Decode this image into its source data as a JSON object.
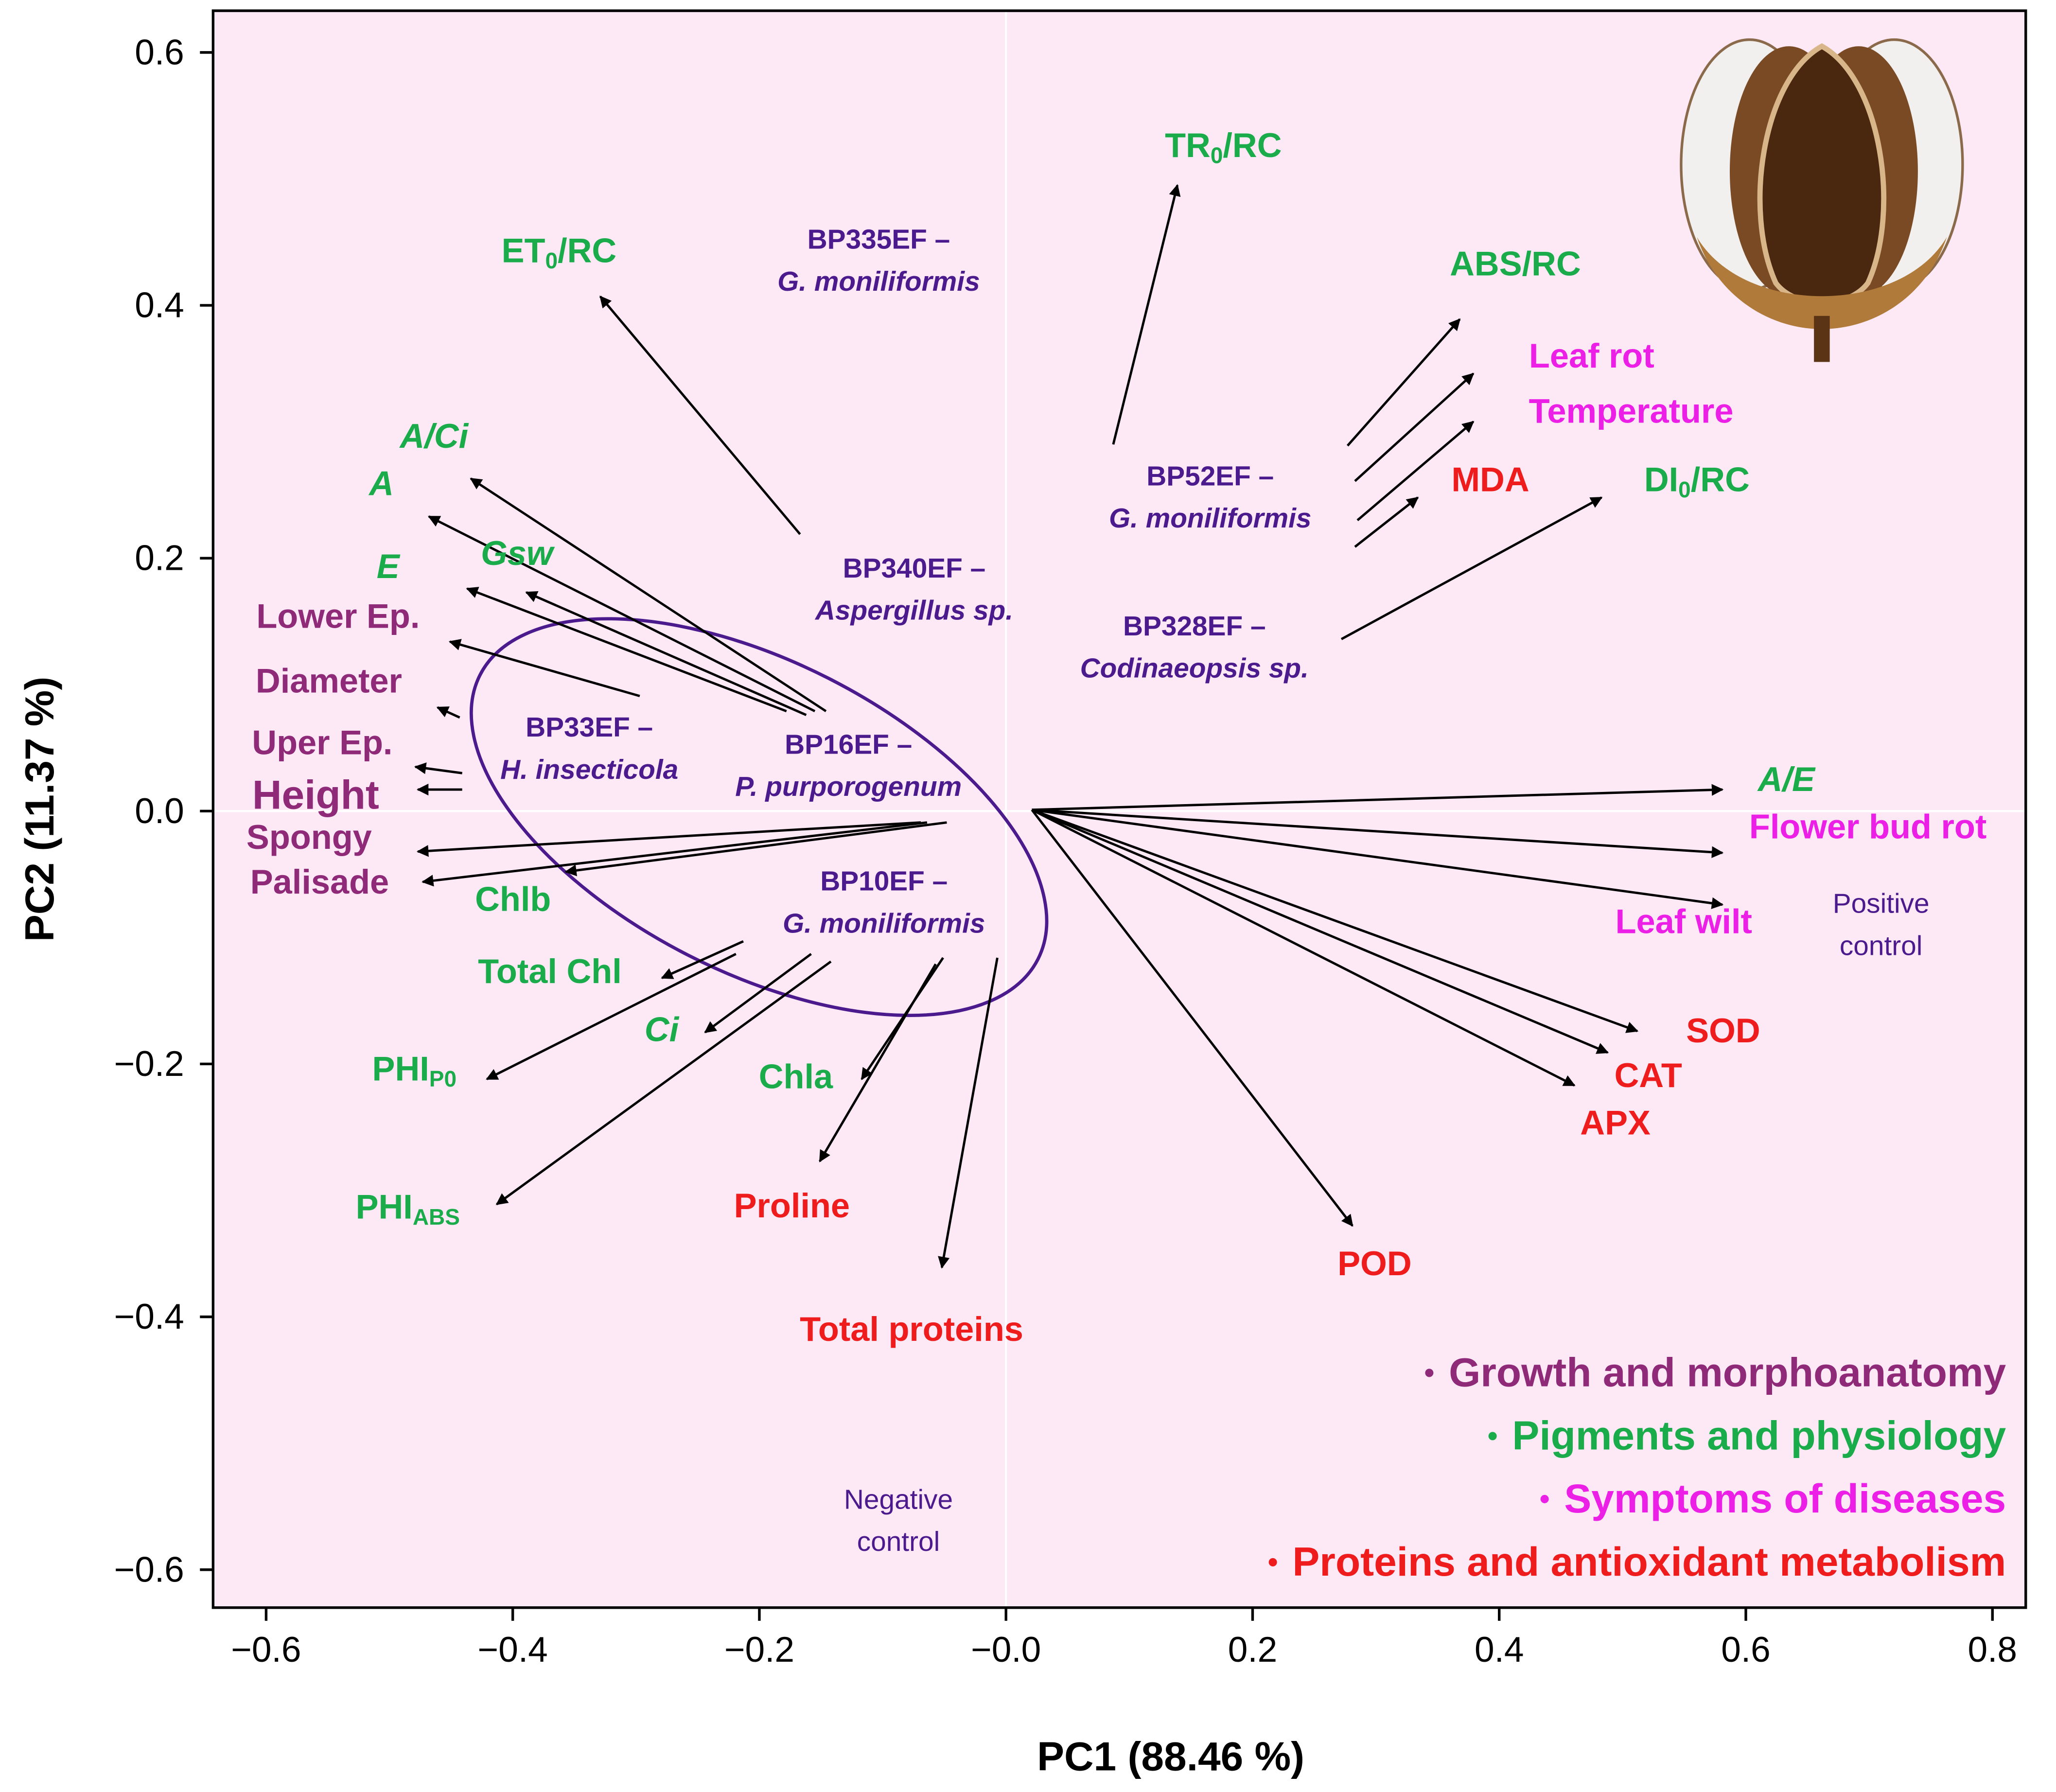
{
  "chart_data": {
    "type": "biplot",
    "x_label": "PC1 (88.46 %)",
    "y_label": "PC2 (11.37 %)",
    "xlim": [
      -0.643,
      0.827
    ],
    "ylim": [
      -0.63,
      0.633
    ],
    "xticks": [
      {
        "value": -0.6,
        "label": "−0.6"
      },
      {
        "value": -0.4,
        "label": "−0.4"
      },
      {
        "value": -0.2,
        "label": "−0.2"
      },
      {
        "value": 0,
        "label": "−0.0"
      },
      0.2,
      0.4,
      0.6,
      0.8
    ],
    "yticks": [
      {
        "value": -0.6,
        "label": "−0.6"
      },
      {
        "value": -0.4,
        "label": "−0.4"
      },
      {
        "value": -0.2,
        "label": "−0.2"
      },
      {
        "value": 0,
        "label": "0.0"
      },
      0.2,
      0.4,
      0.6
    ],
    "background": "#fde9f5",
    "arrow_color": "#000000",
    "groups": [
      {
        "name": "Growth and morphoanatomy",
        "color": "#8e2a78"
      },
      {
        "name": "Pigments and physiology",
        "color": "#1aab4b"
      },
      {
        "name": "Symptoms of diseases",
        "color": "#ec1fe6"
      },
      {
        "name": "Proteins and antioxidant metabolism",
        "color": "#ee1c1c"
      }
    ],
    "loadings": [
      {
        "label": "ET",
        "sub": "0",
        "suffix": "/RC",
        "group": 1,
        "x0": -0.167,
        "y0": 0.219,
        "x": -0.329,
        "y": 0.407
      },
      {
        "label": "TR",
        "sub": "0",
        "suffix": "/RC",
        "group": 1,
        "x0": 0.087,
        "y0": 0.29,
        "x": 0.139,
        "y": 0.495
      },
      {
        "label": "ABS/RC",
        "group": 1,
        "x0": 0.277,
        "y0": 0.289,
        "x": 0.368,
        "y": 0.389
      },
      {
        "label": "Leaf rot",
        "group": 2,
        "x0": 0.283,
        "y0": 0.261,
        "x": 0.379,
        "y": 0.346
      },
      {
        "label": "Temperature",
        "group": 2,
        "x0": 0.285,
        "y0": 0.23,
        "x": 0.379,
        "y": 0.308
      },
      {
        "label": "MDA",
        "group": 3,
        "x0": 0.283,
        "y0": 0.209,
        "x": 0.334,
        "y": 0.248
      },
      {
        "label": "DI",
        "sub": "0",
        "suffix": "/RC",
        "group": 1,
        "x0": 0.272,
        "y0": 0.136,
        "x": 0.483,
        "y": 0.248
      },
      {
        "label": "A/Ci",
        "italic": true,
        "group": 1,
        "x0": -0.146,
        "y0": 0.079,
        "x": -0.434,
        "y": 0.263
      },
      {
        "label": "A",
        "italic": true,
        "group": 1,
        "x0": -0.155,
        "y0": 0.079,
        "x": -0.468,
        "y": 0.233
      },
      {
        "label": "Gsw",
        "italic": true,
        "group": 1,
        "x0": -0.162,
        "y0": 0.076,
        "x": -0.389,
        "y": 0.173
      },
      {
        "label": "E",
        "italic": true,
        "group": 1,
        "x0": -0.178,
        "y0": 0.079,
        "x": -0.437,
        "y": 0.176
      },
      {
        "label": "Lower Ep.",
        "group": 0,
        "x0": -0.297,
        "y0": 0.091,
        "x": -0.451,
        "y": 0.134
      },
      {
        "label": "Diameter",
        "group": 0,
        "x0": -0.443,
        "y0": 0.074,
        "x": -0.461,
        "y": 0.082
      },
      {
        "label": "Uper Ep.",
        "group": 0,
        "x0": -0.441,
        "y0": 0.03,
        "x": -0.479,
        "y": 0.035
      },
      {
        "label": "Height",
        "group": 0,
        "x0": -0.441,
        "y0": 0.017,
        "x": -0.477,
        "y": 0.017
      },
      {
        "label": "Spongy",
        "group": 0,
        "x0": -0.069,
        "y0": -0.009,
        "x": -0.477,
        "y": -0.032
      },
      {
        "label": "Palisade",
        "group": 0,
        "x0": -0.064,
        "y0": -0.009,
        "x": -0.473,
        "y": -0.056
      },
      {
        "label": "Chlb",
        "group": 1,
        "x0": -0.048,
        "y0": -0.009,
        "x": -0.357,
        "y": -0.048
      },
      {
        "label": "Total Chl",
        "group": 1,
        "x0": -0.213,
        "y0": -0.103,
        "x": -0.279,
        "y": -0.132
      },
      {
        "label": "Ci",
        "italic": true,
        "group": 1,
        "x0": -0.158,
        "y0": -0.113,
        "x": -0.244,
        "y": -0.175
      },
      {
        "label": "PHI",
        "sub": "P0",
        "group": 1,
        "x0": -0.219,
        "y0": -0.113,
        "x": -0.421,
        "y": -0.212
      },
      {
        "label": "PHI",
        "sub": "ABS",
        "group": 1,
        "x0": -0.142,
        "y0": -0.119,
        "x": -0.413,
        "y": -0.311
      },
      {
        "label": "Chla",
        "group": 1,
        "x0": -0.051,
        "y0": -0.116,
        "x": -0.117,
        "y": -0.212
      },
      {
        "label": "Proline",
        "group": 3,
        "x0": -0.057,
        "y0": -0.121,
        "x": -0.151,
        "y": -0.277
      },
      {
        "label": "Total proteins",
        "group": 3,
        "x0": -0.007,
        "y0": -0.116,
        "x": -0.052,
        "y": -0.361
      },
      {
        "label": "POD",
        "group": 3,
        "x0": 0.021,
        "y0": 0.001,
        "x": 0.281,
        "y": -0.328
      },
      {
        "label": "APX",
        "group": 3,
        "x0": 0.021,
        "y0": 0.001,
        "x": 0.461,
        "y": -0.217
      },
      {
        "label": "CAT",
        "group": 3,
        "x0": 0.021,
        "y0": 0.001,
        "x": 0.488,
        "y": -0.191
      },
      {
        "label": "SOD",
        "group": 3,
        "x0": 0.021,
        "y0": 0.001,
        "x": 0.512,
        "y": -0.174
      },
      {
        "label": "Leaf wilt",
        "group": 2,
        "x0": 0.021,
        "y0": 0.001,
        "x": 0.581,
        "y": -0.074
      },
      {
        "label": "Flower bud rot",
        "group": 2,
        "x0": 0.021,
        "y0": 0.001,
        "x": 0.581,
        "y": -0.033
      },
      {
        "label": "A/E",
        "italic": true,
        "group": 1,
        "x0": 0.021,
        "y0": 0.001,
        "x": 0.581,
        "y": 0.017
      }
    ],
    "treatment_color": "#4b1a8c",
    "treatments": [
      {
        "lines": [
          "BP335EF –",
          "G. moniliformis"
        ],
        "italic": [
          false,
          true
        ]
      },
      {
        "lines": [
          "BP52EF –",
          "G. moniliformis"
        ],
        "italic": [
          false,
          true
        ]
      },
      {
        "lines": [
          "BP340EF –",
          "Aspergillus sp."
        ],
        "italic": [
          false,
          true
        ]
      },
      {
        "lines": [
          "BP328EF –",
          "Codinaeopsis sp."
        ],
        "italic": [
          false,
          true
        ]
      },
      {
        "lines": [
          "BP33EF –",
          "H. insecticola"
        ],
        "italic": [
          false,
          true
        ]
      },
      {
        "lines": [
          "BP16EF –",
          "P. purporogenum"
        ],
        "italic": [
          false,
          true
        ]
      },
      {
        "lines": [
          "BP10EF –",
          "G. moniliformis"
        ],
        "italic": [
          false,
          true
        ]
      },
      {
        "lines": [
          "Positive",
          "control"
        ],
        "italic": [
          false,
          false
        ]
      },
      {
        "lines": [
          "Negative",
          "control"
        ],
        "italic": [
          false,
          false
        ]
      }
    ]
  }
}
